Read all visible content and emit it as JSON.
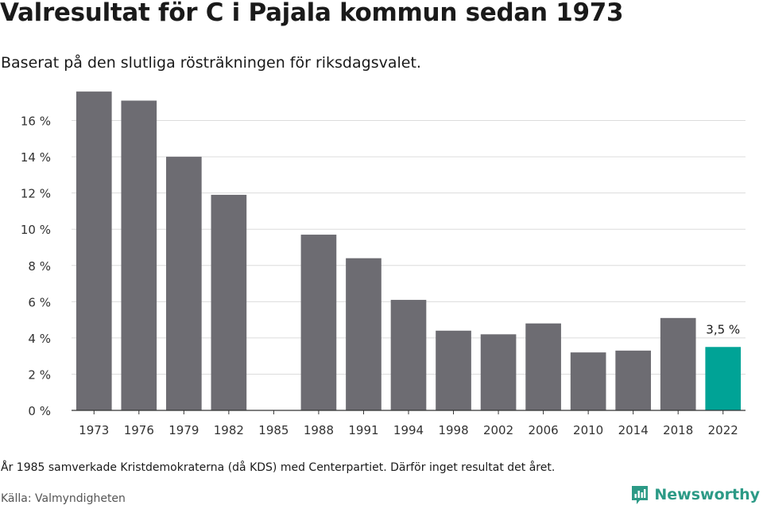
{
  "title": "Valresultat för C i Pajala kommun sedan 1973",
  "subtitle": "Baserat på den slutliga rösträkningen för riksdagsvalet.",
  "note": "År 1985 samverkade Kristdemokraterna (då KDS) med Centerpartiet. Därför inget resultat det året.",
  "source": "Källa: Valmyndigheten",
  "brand": {
    "name": "Newsworthy",
    "icon": "newsworthy-logo-icon",
    "color": "#2c9a86"
  },
  "chart_data": {
    "type": "bar",
    "categories": [
      "1973",
      "1976",
      "1979",
      "1982",
      "1985",
      "1988",
      "1991",
      "1994",
      "1998",
      "2002",
      "2006",
      "2010",
      "2014",
      "2018",
      "2022"
    ],
    "values": [
      17.6,
      17.1,
      14.0,
      11.9,
      null,
      9.7,
      8.4,
      6.1,
      4.4,
      4.2,
      4.8,
      3.2,
      3.3,
      5.1,
      3.5
    ],
    "ylim": [
      0,
      18
    ],
    "yticks": [
      0,
      2,
      4,
      6,
      8,
      10,
      12,
      14,
      16
    ],
    "ytick_labels": [
      "0 %",
      "2 %",
      "4 %",
      "6 %",
      "8 %",
      "10 %",
      "12 %",
      "14 %",
      "16 %"
    ],
    "grid": true,
    "bar_color": "#6d6c72",
    "highlight_color": "#00a396",
    "highlight_index": 14,
    "data_labels": [
      {
        "index": 14,
        "text": "3,5 %"
      }
    ]
  }
}
